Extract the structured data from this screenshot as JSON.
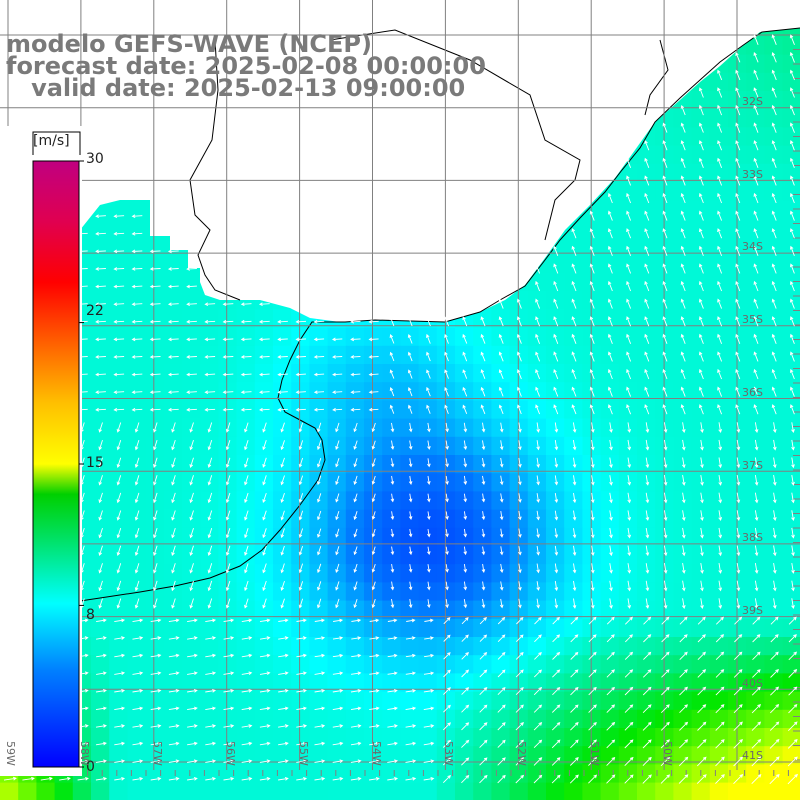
{
  "title": {
    "line1": "modelo GEFS-WAVE (NCEP)",
    "line2": "forecast date: 2025-02-08 00:00:00",
    "line3": "   valid date: 2025-02-13 09:00:00"
  },
  "colorbar": {
    "unit": "[m/s]",
    "min": 0,
    "max": 30,
    "ticks": [
      "30",
      "22",
      "15",
      "8",
      "0"
    ],
    "tick_values": [
      30,
      22,
      15,
      8,
      0
    ],
    "colors": [
      "#0000ff",
      "#00a0ff",
      "#00ffff",
      "#00e060",
      "#00e000",
      "#a0ff00",
      "#ffff00",
      "#ffa000",
      "#ff6000",
      "#ff0000",
      "#e00060",
      "#c00080"
    ]
  },
  "map": {
    "lat_labels": [
      "32S",
      "33S",
      "34S",
      "35S",
      "36S",
      "37S",
      "38S",
      "39S",
      "40S",
      "41S"
    ],
    "lon_labels": [
      "59W",
      "58W",
      "57W",
      "56W",
      "55W",
      "54W",
      "53W",
      "52W",
      "51W",
      "50W"
    ],
    "land_color": "#ffffff",
    "coast_color": "#000000",
    "grid_color": "#808080",
    "arrow_color": "#ffffff"
  }
}
